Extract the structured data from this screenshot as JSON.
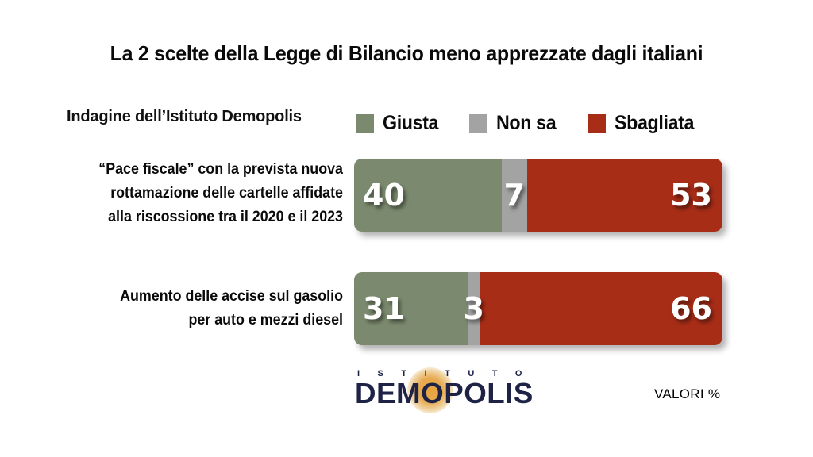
{
  "title": "La 2 scelte della Legge di Bilancio meno apprezzate dagli italiani",
  "subtitle": "Indagine dell’Istituto Demopolis",
  "legend": [
    {
      "label": "Giusta",
      "color": "#7b8a6e"
    },
    {
      "label": "Non sa",
      "color": "#a3a3a3"
    },
    {
      "label": "Sbagliata",
      "color": "#a72d17"
    }
  ],
  "rows": [
    {
      "label_lines": [
        "“Pace fiscale” con la prevista nuova",
        "rottamazione delle cartelle affidate",
        "alla riscossione tra il 2020 e il 2023"
      ],
      "values": {
        "giusta": 40,
        "non_sa": 7,
        "sbagliata": 53
      }
    },
    {
      "label_lines": [
        "Aumento delle accise sul gasolio",
        "per auto e mezzi diesel"
      ],
      "values": {
        "giusta": 31,
        "non_sa": 3,
        "sbagliata": 66
      }
    }
  ],
  "footer": {
    "logo_top": "ISTITUTO",
    "logo_main": "DEMOPOLIS",
    "valori_label": "VALORI %"
  },
  "colors": {
    "giusta": "#7b8a6e",
    "non_sa": "#a3a3a3",
    "sbagliata": "#a72d17",
    "logo_navy": "#1e2346",
    "logo_orange": "#e6a33c",
    "background": "#ffffff",
    "text": "#0a0a0a"
  },
  "chart_data": {
    "type": "bar",
    "orientation": "horizontal-stacked",
    "title": "La 2 scelte della Legge di Bilancio meno apprezzate dagli italiani",
    "subtitle": "Indagine dell’Istituto Demopolis",
    "unit": "%",
    "xlim": [
      0,
      100
    ],
    "grid": false,
    "legend_position": "top",
    "categories": [
      "“Pace fiscale” con la prevista nuova rottamazione delle cartelle affidate alla riscossione tra il 2020 e il 2023",
      "Aumento delle accise sul gasolio per auto e mezzi diesel"
    ],
    "series": [
      {
        "name": "Giusta",
        "color": "#7b8a6e",
        "values": [
          40,
          31
        ]
      },
      {
        "name": "Non sa",
        "color": "#a3a3a3",
        "values": [
          7,
          3
        ]
      },
      {
        "name": "Sbagliata",
        "color": "#a72d17",
        "values": [
          53,
          66
        ]
      }
    ],
    "data_labels": true,
    "footnote": "VALORI %"
  }
}
